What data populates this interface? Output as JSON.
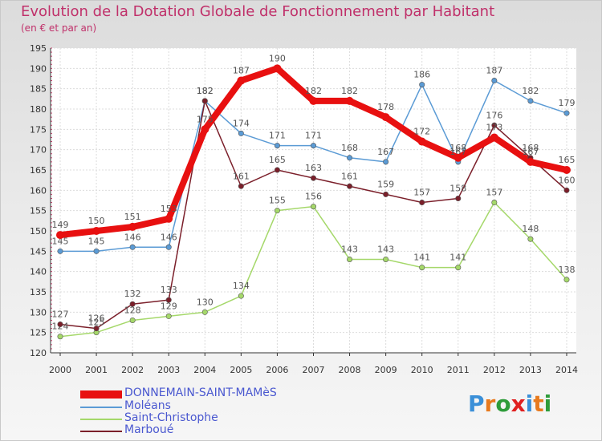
{
  "title": "Evolution de la Dotation Globale de Fonctionnement par Habitant",
  "subtitle": "(en € et par an)",
  "logo": {
    "text": "Proxiti",
    "letters": [
      "P",
      "r",
      "o",
      "x",
      "i",
      "t",
      "i"
    ],
    "colors": [
      "#3a8fd8",
      "#e87a1e",
      "#2e9c3a",
      "#e02020",
      "#3a8fd8",
      "#e87a1e",
      "#2e9c3a"
    ]
  },
  "chart_data": {
    "type": "line",
    "x": [
      "2000",
      "2001",
      "2002",
      "2003",
      "2004",
      "2005",
      "2006",
      "2007",
      "2008",
      "2009",
      "2010",
      "2011",
      "2012",
      "2013",
      "2014"
    ],
    "ylim": [
      120,
      195
    ],
    "yticks": [
      120,
      125,
      130,
      135,
      140,
      145,
      150,
      155,
      160,
      165,
      170,
      175,
      180,
      185,
      190,
      195
    ],
    "grid": true,
    "legend_position": "bottom-left",
    "series": [
      {
        "name": "Moléans",
        "color": "#5b9bd5",
        "values": [
          145,
          145,
          146,
          146,
          182,
          174,
          171,
          171,
          168,
          167,
          186,
          167,
          187,
          182,
          179
        ]
      },
      {
        "name": "Saint-Christophe",
        "color": "#a5d86a",
        "values": [
          124,
          125,
          128,
          129,
          130,
          134,
          155,
          156,
          143,
          143,
          141,
          141,
          157,
          148,
          138
        ]
      },
      {
        "name": "Marboué",
        "color": "#7b1f2a",
        "values": [
          127,
          126,
          132,
          133,
          182,
          161,
          165,
          163,
          161,
          159,
          157,
          158,
          176,
          168,
          160
        ]
      },
      {
        "name": "DONNEMAIN-SAINT-MAMèS",
        "color": "#e81010",
        "values": [
          149,
          150,
          151,
          153,
          175,
          187,
          190,
          182,
          182,
          178,
          172,
          168,
          173,
          167,
          165
        ]
      }
    ]
  }
}
